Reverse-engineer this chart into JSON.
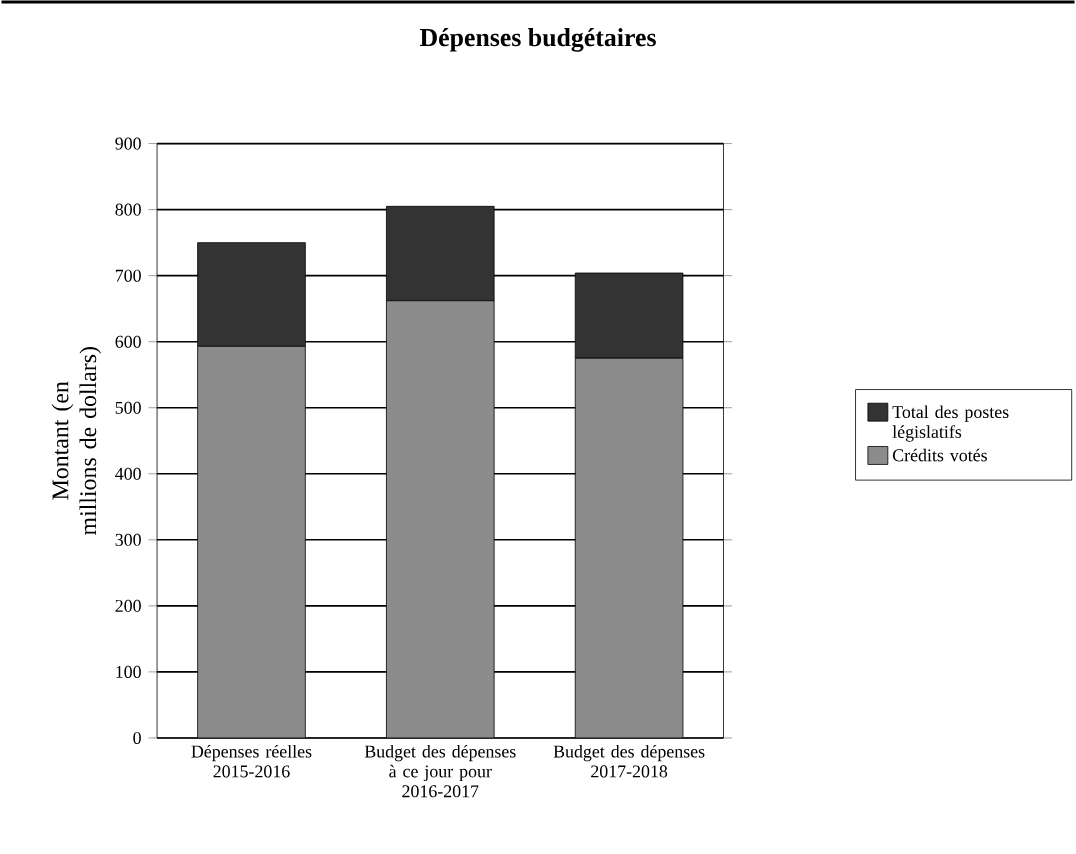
{
  "chart_data": {
    "type": "bar",
    "title": "Dépenses budgétaires",
    "ylabel": "Montant (en millions de dollars)",
    "categories": [
      "Dépenses réelles 2015-2016",
      "Budget des dépenses à ce jour pour 2016-2017",
      "Budget des dépenses 2017-2018"
    ],
    "stacked": true,
    "series": [
      {
        "name": "Crédits votés",
        "color": "#8c8c8c",
        "values": [
          593,
          662,
          575
        ]
      },
      {
        "name": "Total des postes législatifs",
        "color": "#333333",
        "values": [
          157,
          143,
          129
        ]
      }
    ],
    "ylim": [
      0,
      900
    ],
    "yticks": [
      0,
      100,
      200,
      300,
      400,
      500,
      600,
      700,
      800,
      900
    ],
    "grid": "y",
    "legend": "right"
  }
}
